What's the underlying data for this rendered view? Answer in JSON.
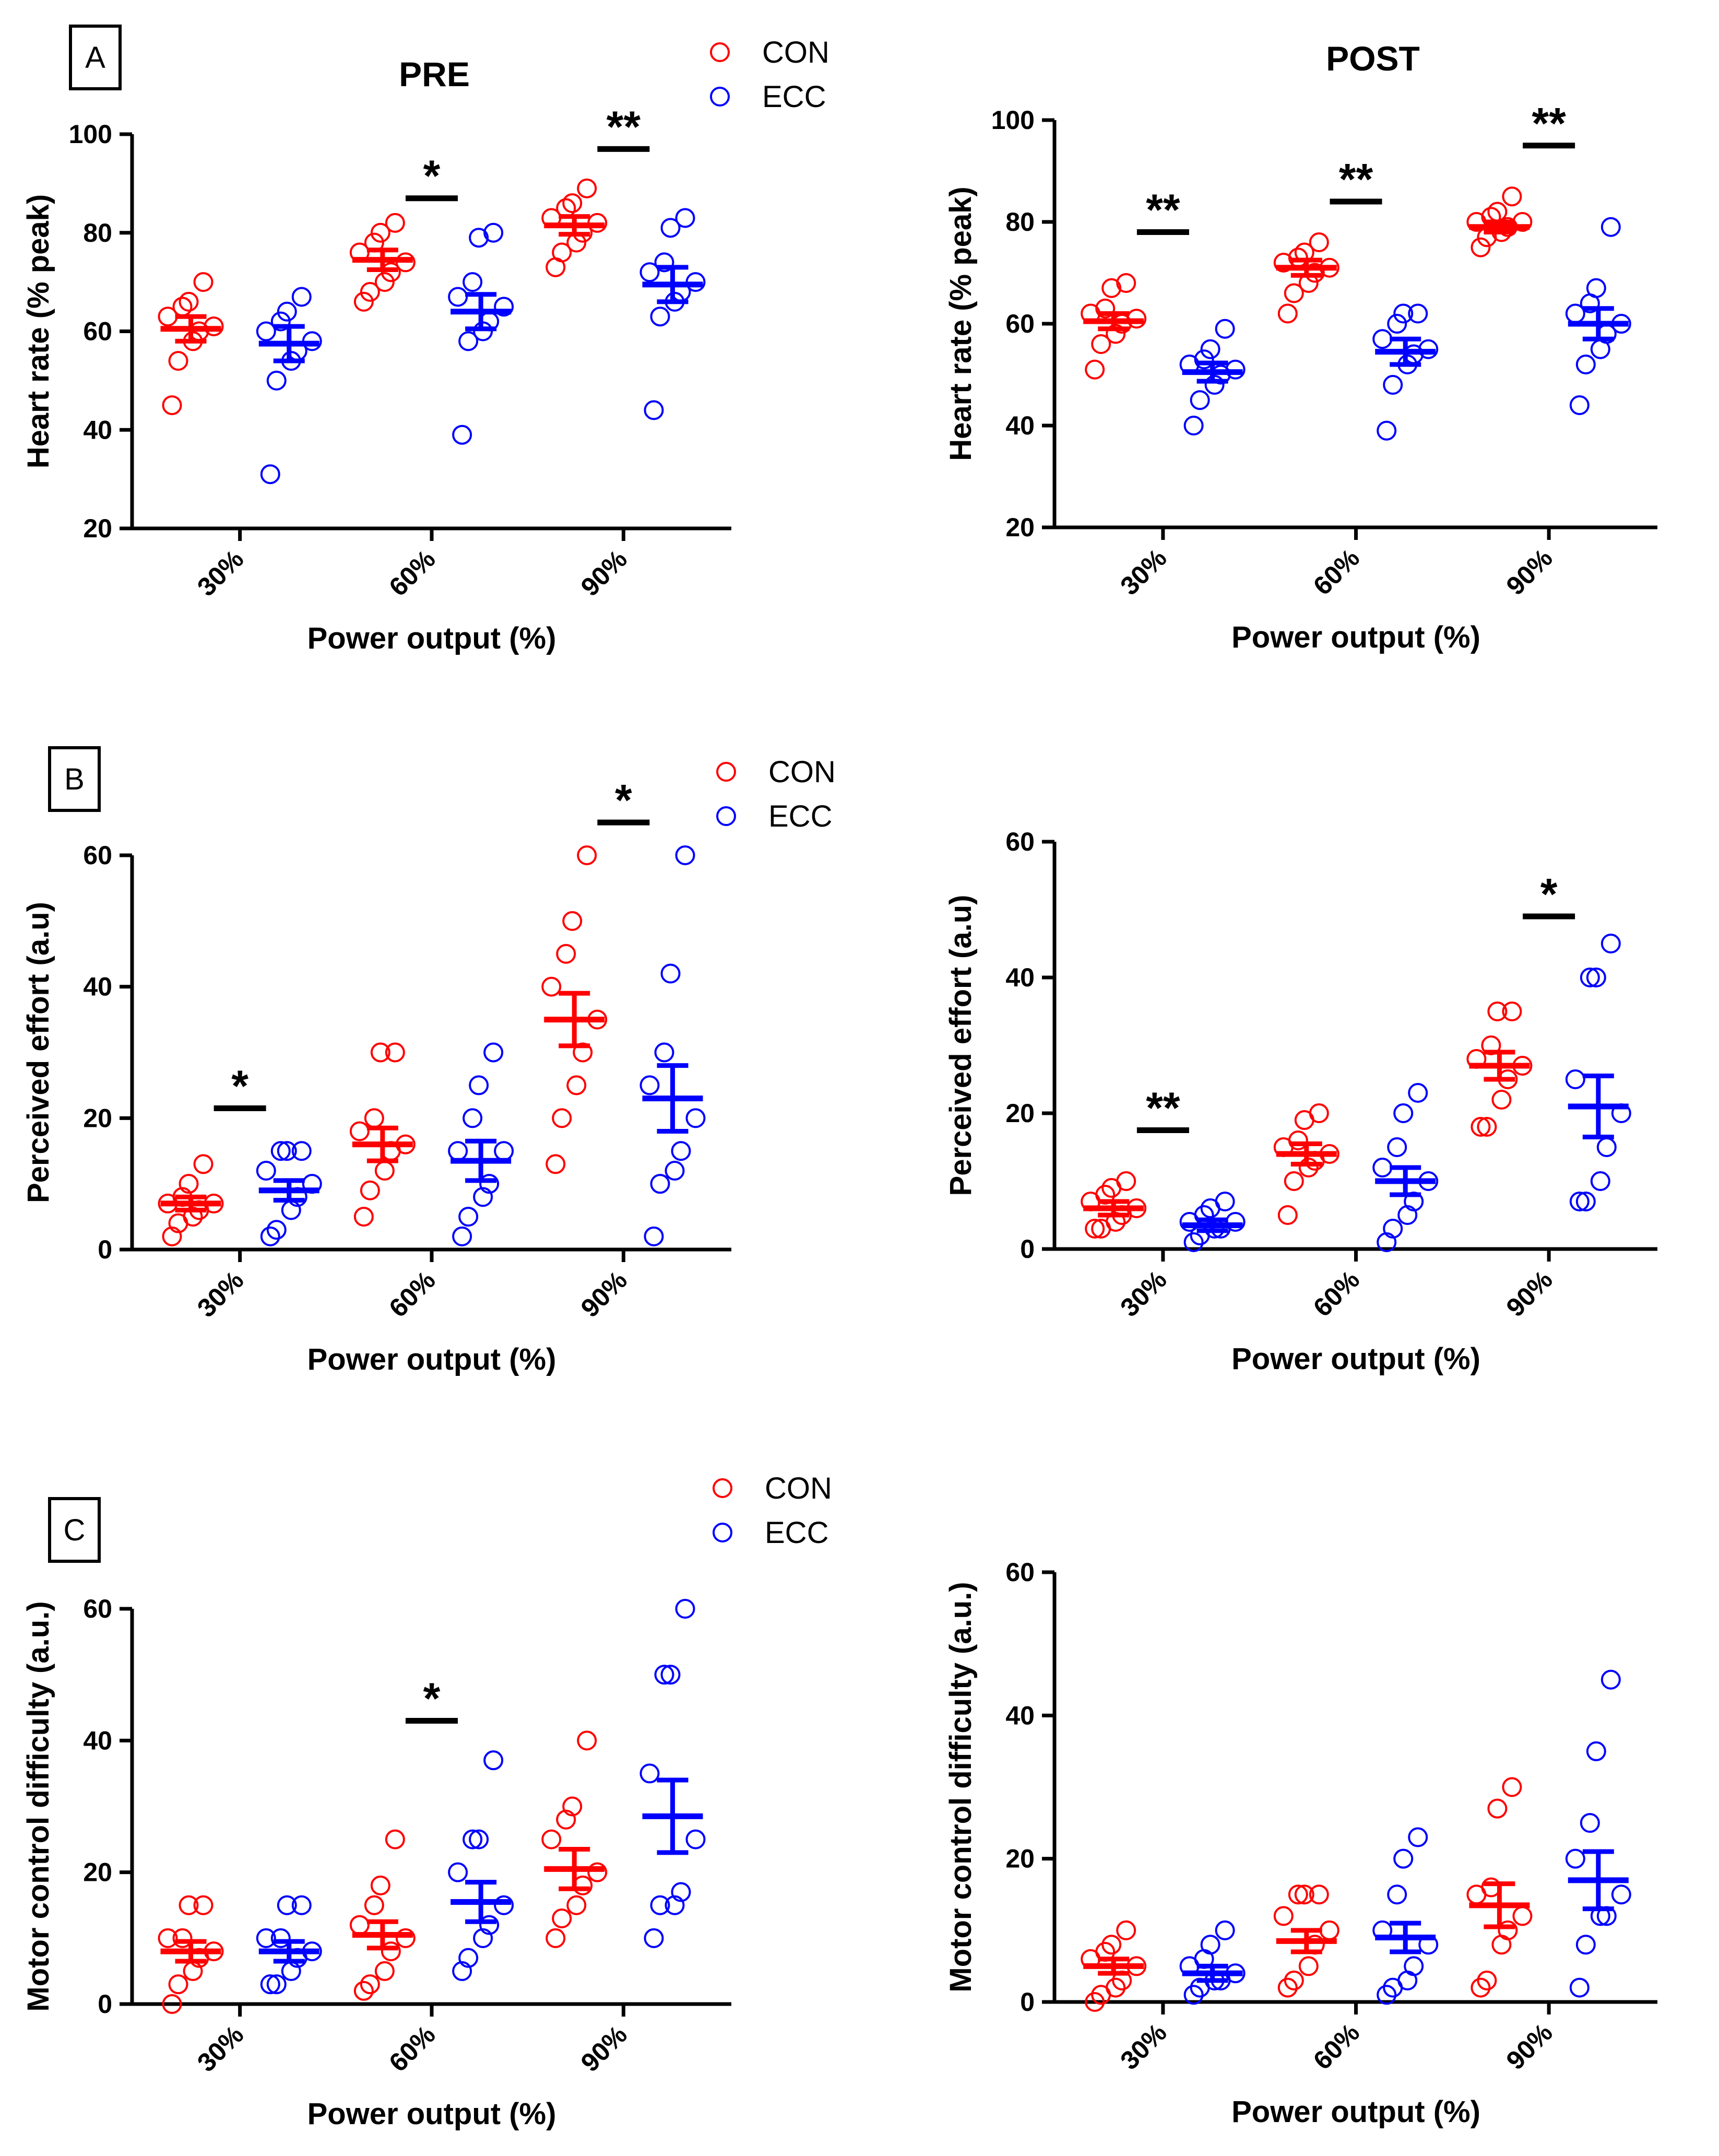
{
  "colors": {
    "CON": "#ff0000",
    "ECC": "#0000ff",
    "axis": "#000000"
  },
  "legend_labels": [
    "CON",
    "ECC"
  ],
  "chart_data": [
    {
      "id": "A-pre",
      "type": "scatter",
      "panel_letter": "A",
      "title": "PRE",
      "xlabel": "Power output (%)",
      "ylabel": "Heart rate (% peak)",
      "ylim": [
        20,
        100
      ],
      "yticks": [
        20,
        40,
        60,
        80,
        100
      ],
      "categories": [
        "30%",
        "60%",
        "90%"
      ],
      "series": [
        {
          "name": "CON",
          "groups": [
            {
              "mean": 60.5,
              "sem": 2.5,
              "points": [
                45,
                54,
                58,
                60,
                61,
                63,
                65,
                66,
                70
              ]
            },
            {
              "mean": 74.5,
              "sem": 2.0,
              "points": [
                66,
                68,
                70,
                72,
                74,
                76,
                78,
                80,
                82
              ]
            },
            {
              "mean": 81.5,
              "sem": 1.8,
              "points": [
                73,
                76,
                78,
                80,
                82,
                83,
                85,
                86,
                89
              ]
            }
          ]
        },
        {
          "name": "ECC",
          "groups": [
            {
              "mean": 57.5,
              "sem": 3.5,
              "points": [
                31,
                50,
                54,
                56,
                58,
                60,
                62,
                64,
                67
              ]
            },
            {
              "mean": 64.0,
              "sem": 3.5,
              "points": [
                39,
                58,
                60,
                62,
                65,
                67,
                70,
                79,
                80
              ]
            },
            {
              "mean": 69.5,
              "sem": 3.5,
              "points": [
                44,
                63,
                66,
                68,
                70,
                72,
                74,
                81,
                83
              ]
            }
          ]
        }
      ],
      "significance": [
        {
          "group": 1,
          "label": "*",
          "y": 87
        },
        {
          "group": 2,
          "label": "**",
          "y": 97
        }
      ]
    },
    {
      "id": "A-post",
      "type": "scatter",
      "title": "POST",
      "xlabel": "Power output (%)",
      "ylabel": "Heart rate (% peak)",
      "ylim": [
        20,
        100
      ],
      "yticks": [
        20,
        40,
        60,
        80,
        100
      ],
      "categories": [
        "30%",
        "60%",
        "90%"
      ],
      "series": [
        {
          "name": "CON",
          "groups": [
            {
              "mean": 60.5,
              "sem": 1.5,
              "points": [
                51,
                56,
                58,
                60,
                61,
                62,
                63,
                67,
                68
              ]
            },
            {
              "mean": 71.0,
              "sem": 1.5,
              "points": [
                62,
                66,
                68,
                70,
                71,
                72,
                73,
                74,
                76
              ]
            },
            {
              "mean": 79.0,
              "sem": 1.0,
              "points": [
                75,
                77,
                78,
                79,
                80,
                80,
                81,
                82,
                85
              ]
            }
          ]
        },
        {
          "name": "ECC",
          "groups": [
            {
              "mean": 50.5,
              "sem": 1.8,
              "points": [
                40,
                45,
                48,
                50,
                51,
                52,
                53,
                55,
                59
              ]
            },
            {
              "mean": 54.5,
              "sem": 2.5,
              "points": [
                39,
                48,
                52,
                54,
                55,
                57,
                60,
                62,
                62
              ]
            },
            {
              "mean": 60.0,
              "sem": 3.0,
              "points": [
                44,
                52,
                55,
                58,
                60,
                62,
                64,
                67,
                79
              ]
            }
          ]
        }
      ],
      "significance": [
        {
          "group": 0,
          "label": "**",
          "y": 78
        },
        {
          "group": 1,
          "label": "**",
          "y": 84
        },
        {
          "group": 2,
          "label": "**",
          "y": 95
        }
      ]
    },
    {
      "id": "B-pre",
      "type": "scatter",
      "panel_letter": "B",
      "xlabel": "Power output (%)",
      "ylabel": "Perceived effort (a.u)",
      "ylim": [
        0,
        60
      ],
      "yticks": [
        0,
        20,
        40,
        60
      ],
      "categories": [
        "30%",
        "60%",
        "90%"
      ],
      "series": [
        {
          "name": "CON",
          "groups": [
            {
              "mean": 7,
              "sem": 1.0,
              "points": [
                2,
                4,
                5,
                6,
                7,
                7,
                8,
                10,
                13
              ]
            },
            {
              "mean": 16,
              "sem": 2.5,
              "points": [
                5,
                9,
                12,
                15,
                16,
                18,
                20,
                30,
                30
              ]
            },
            {
              "mean": 35,
              "sem": 4.0,
              "points": [
                13,
                20,
                25,
                30,
                35,
                40,
                45,
                50,
                60
              ]
            }
          ]
        },
        {
          "name": "ECC",
          "groups": [
            {
              "mean": 9,
              "sem": 1.5,
              "points": [
                2,
                3,
                6,
                8,
                10,
                12,
                15,
                15,
                15
              ]
            },
            {
              "mean": 13.5,
              "sem": 3.0,
              "points": [
                2,
                5,
                8,
                10,
                15,
                15,
                20,
                25,
                30
              ]
            },
            {
              "mean": 23,
              "sem": 5.0,
              "points": [
                2,
                10,
                12,
                15,
                20,
                25,
                30,
                42,
                60
              ]
            }
          ]
        }
      ],
      "significance": [
        {
          "group": 0,
          "label": "*",
          "y": 21.5
        },
        {
          "group": 2,
          "label": "*",
          "y": 65
        }
      ]
    },
    {
      "id": "B-post",
      "type": "scatter",
      "xlabel": "Power output (%)",
      "ylabel": "Perceived effort (a.u)",
      "ylim": [
        0,
        60
      ],
      "yticks": [
        0,
        20,
        40,
        60
      ],
      "categories": [
        "30%",
        "60%",
        "90%"
      ],
      "series": [
        {
          "name": "CON",
          "groups": [
            {
              "mean": 6,
              "sem": 1.0,
              "points": [
                3,
                3,
                4,
                5,
                6,
                7,
                8,
                9,
                10
              ]
            },
            {
              "mean": 14,
              "sem": 1.5,
              "points": [
                5,
                10,
                12,
                13,
                14,
                15,
                16,
                19,
                20
              ]
            },
            {
              "mean": 27,
              "sem": 2.0,
              "points": [
                18,
                18,
                22,
                25,
                27,
                28,
                30,
                35,
                35
              ]
            }
          ]
        },
        {
          "name": "ECC",
          "groups": [
            {
              "mean": 3.5,
              "sem": 0.8,
              "points": [
                1,
                2,
                3,
                3,
                4,
                4,
                5,
                6,
                7
              ]
            },
            {
              "mean": 10,
              "sem": 2.0,
              "points": [
                1,
                3,
                5,
                7,
                10,
                12,
                15,
                20,
                23
              ]
            },
            {
              "mean": 21,
              "sem": 4.5,
              "points": [
                7,
                7,
                10,
                15,
                20,
                25,
                40,
                40,
                45
              ]
            }
          ]
        }
      ],
      "significance": [
        {
          "group": 0,
          "label": "**",
          "y": 17.5
        },
        {
          "group": 2,
          "label": "*",
          "y": 49
        }
      ]
    },
    {
      "id": "C-pre",
      "type": "scatter",
      "panel_letter": "C",
      "xlabel": "Power output (%)",
      "ylabel": "Motor control difficulty (a.u.)",
      "ylim": [
        0,
        60
      ],
      "yticks": [
        0,
        20,
        40,
        60
      ],
      "categories": [
        "30%",
        "60%",
        "90%"
      ],
      "series": [
        {
          "name": "CON",
          "groups": [
            {
              "mean": 8,
              "sem": 1.5,
              "points": [
                0,
                3,
                5,
                7,
                8,
                10,
                10,
                15,
                15
              ]
            },
            {
              "mean": 10.5,
              "sem": 2.0,
              "points": [
                2,
                3,
                5,
                8,
                10,
                12,
                15,
                18,
                25
              ]
            },
            {
              "mean": 20.5,
              "sem": 3.0,
              "points": [
                10,
                13,
                15,
                18,
                20,
                25,
                28,
                30,
                40
              ]
            }
          ]
        },
        {
          "name": "ECC",
          "groups": [
            {
              "mean": 8,
              "sem": 1.5,
              "points": [
                3,
                3,
                5,
                7,
                8,
                10,
                10,
                15,
                15
              ]
            },
            {
              "mean": 15.5,
              "sem": 3.0,
              "points": [
                5,
                7,
                10,
                12,
                15,
                20,
                25,
                25,
                37
              ]
            },
            {
              "mean": 28.5,
              "sem": 5.5,
              "points": [
                10,
                15,
                15,
                17,
                25,
                35,
                50,
                50,
                60
              ]
            }
          ]
        }
      ],
      "significance": [
        {
          "group": 1,
          "label": "*",
          "y": 43
        }
      ]
    },
    {
      "id": "C-post",
      "type": "scatter",
      "xlabel": "Power output (%)",
      "ylabel": "Motor control difficulty (a.u.)",
      "ylim": [
        0,
        60
      ],
      "yticks": [
        0,
        20,
        40,
        60
      ],
      "categories": [
        "30%",
        "60%",
        "90%"
      ],
      "series": [
        {
          "name": "CON",
          "groups": [
            {
              "mean": 5,
              "sem": 1.0,
              "points": [
                0,
                1,
                2,
                3,
                5,
                6,
                7,
                8,
                10
              ]
            },
            {
              "mean": 8.5,
              "sem": 1.5,
              "points": [
                2,
                3,
                5,
                8,
                10,
                12,
                15,
                15,
                15
              ]
            },
            {
              "mean": 13.5,
              "sem": 3.0,
              "points": [
                2,
                3,
                8,
                10,
                12,
                15,
                16,
                27,
                30
              ]
            }
          ]
        },
        {
          "name": "ECC",
          "groups": [
            {
              "mean": 4,
              "sem": 1.0,
              "points": [
                1,
                2,
                3,
                3,
                4,
                5,
                6,
                8,
                10
              ]
            },
            {
              "mean": 9,
              "sem": 2.0,
              "points": [
                1,
                2,
                3,
                5,
                8,
                10,
                15,
                20,
                23
              ]
            },
            {
              "mean": 17,
              "sem": 4.0,
              "points": [
                2,
                8,
                12,
                12,
                15,
                20,
                25,
                35,
                45
              ]
            }
          ]
        }
      ],
      "significance": []
    }
  ]
}
